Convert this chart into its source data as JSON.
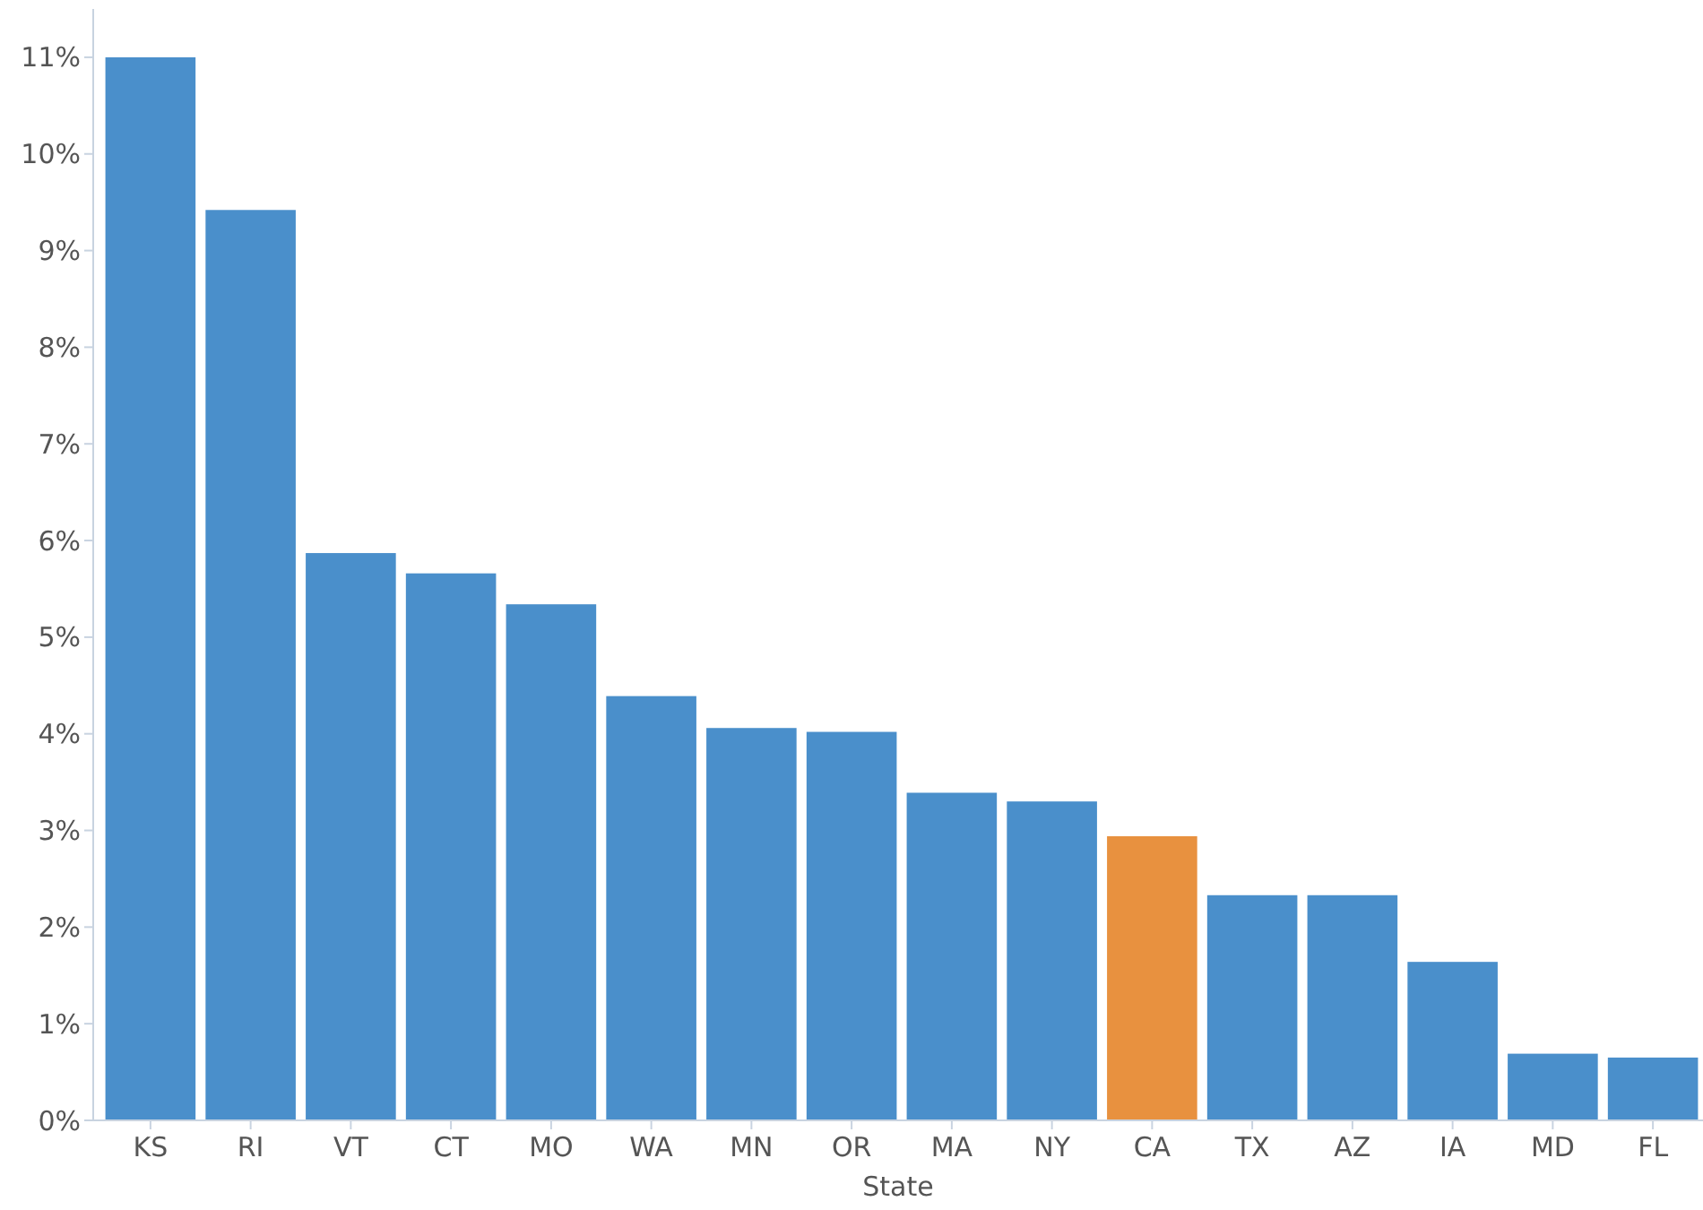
{
  "chart_data": {
    "type": "bar",
    "xlabel": "State",
    "categories": [
      "KS",
      "RI",
      "VT",
      "CT",
      "MO",
      "WA",
      "MN",
      "OR",
      "MA",
      "NY",
      "CA",
      "TX",
      "AZ",
      "IA",
      "MD",
      "FL"
    ],
    "values": [
      11.0,
      9.42,
      5.87,
      5.66,
      5.34,
      4.39,
      4.06,
      4.02,
      3.39,
      3.3,
      2.94,
      2.33,
      2.33,
      1.64,
      0.69,
      0.65
    ],
    "colors": [
      "#4a8fcb",
      "#4a8fcb",
      "#4a8fcb",
      "#4a8fcb",
      "#4a8fcb",
      "#4a8fcb",
      "#4a8fcb",
      "#4a8fcb",
      "#4a8fcb",
      "#4a8fcb",
      "#e8913f",
      "#4a8fcb",
      "#4a8fcb",
      "#4a8fcb",
      "#4a8fcb",
      "#4a8fcb"
    ],
    "ylim": [
      0,
      11.5
    ],
    "yticks": [
      {
        "value": 0,
        "label": "0%"
      },
      {
        "value": 1,
        "label": "1%"
      },
      {
        "value": 2,
        "label": "2%"
      },
      {
        "value": 3,
        "label": "3%"
      },
      {
        "value": 4,
        "label": "4%"
      },
      {
        "value": 5,
        "label": "5%"
      },
      {
        "value": 6,
        "label": "6%"
      },
      {
        "value": 7,
        "label": "7%"
      },
      {
        "value": 8,
        "label": "8%"
      },
      {
        "value": 9,
        "label": "9%"
      },
      {
        "value": 10,
        "label": "10%"
      },
      {
        "value": 11,
        "label": "11%"
      }
    ],
    "grid": false
  }
}
